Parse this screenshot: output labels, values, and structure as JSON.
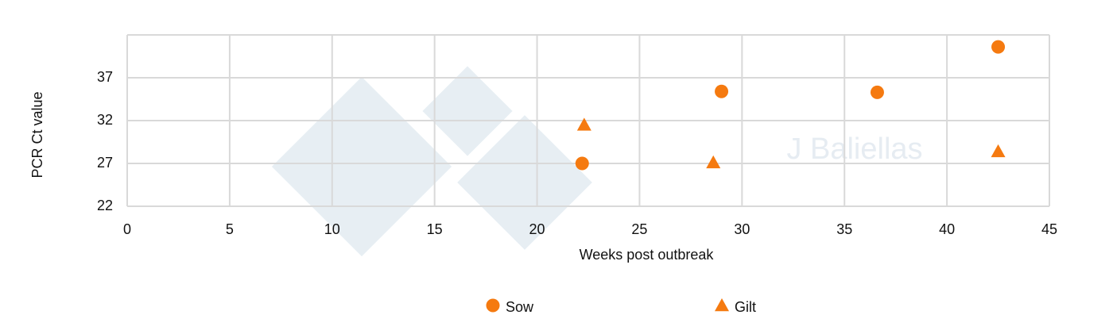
{
  "chart_data": {
    "type": "scatter",
    "x_label": "Weeks post outbreak",
    "y_label": "PCR Ct value",
    "watermark": "J Baliellas",
    "xlim": [
      0,
      45
    ],
    "xticks": [
      0,
      5,
      10,
      15,
      20,
      25,
      30,
      35,
      40,
      45
    ],
    "ylim": [
      22,
      42
    ],
    "yticks": [
      22,
      27,
      32,
      37
    ],
    "grid": true,
    "legend": "bottom",
    "series": [
      {
        "name": "Sow",
        "color": "#f57a10",
        "marker": "circle",
        "x": [
          22.2,
          29,
          36.6,
          42.5
        ],
        "values": [
          27,
          35.4,
          35.3,
          40.6
        ]
      },
      {
        "name": "Gilt",
        "color": "#f57a10",
        "marker": "triangle",
        "x": [
          22.3,
          28.6,
          42.5
        ],
        "values": [
          31.5,
          27.1,
          28.4
        ]
      }
    ]
  }
}
